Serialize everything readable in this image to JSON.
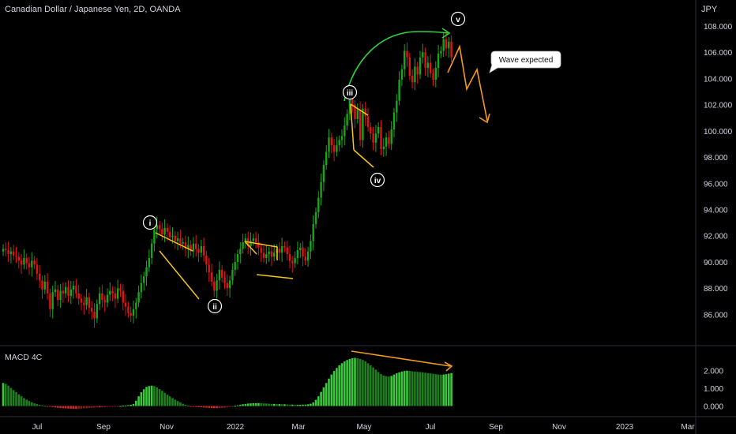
{
  "header": {
    "title": "Canadian Dollar / Japanese Yen, 2D, OANDA"
  },
  "chart_data": [
    {
      "type": "candlestick",
      "title": "Canadian Dollar / Japanese Yen, 2D, OANDA",
      "currency": "JPY",
      "x_ticks": [
        "Jul",
        "Sep",
        "Nov",
        "2022",
        "Mar",
        "May",
        "Jul",
        "Sep",
        "Nov",
        "2023",
        "Mar"
      ],
      "y_ticks": [
        "86.000",
        "88.000",
        "90.000",
        "92.000",
        "94.000",
        "96.000",
        "98.000",
        "100.000",
        "102.000",
        "104.000",
        "106.000",
        "108.000"
      ],
      "ylim": [
        84.1,
        109.5
      ],
      "closes": [
        91.0,
        90.9,
        90.6,
        90.8,
        90.5,
        90.4,
        90.1,
        89.8,
        90.3,
        89.9,
        89.6,
        90.1,
        89.8,
        89.1,
        88.6,
        87.9,
        88.5,
        87.6,
        86.4,
        87.7,
        87.9,
        87.1,
        87.8,
        87.6,
        88.1,
        87.4,
        87.9,
        88.2,
        87.6,
        87.2,
        86.9,
        86.7,
        87.3,
        86.5,
        86.2,
        85.7,
        86.8,
        87.6,
        87.1,
        86.9,
        87.5,
        87.8,
        87.6,
        87.2,
        88.0,
        87.8,
        86.9,
        86.6,
        86.1,
        85.9,
        86.4,
        86.9,
        87.7,
        88.4,
        88.9,
        89.6,
        90.3,
        91.4,
        92.5,
        92.8,
        92.5,
        92.1,
        92.6,
        92.3,
        91.9,
        92.0,
        91.6,
        91.8,
        91.4,
        91.5,
        91.0,
        91.3,
        90.8,
        91.4,
        91.0,
        90.7,
        91.2,
        90.5,
        89.8,
        89.2,
        88.5,
        87.8,
        88.6,
        89.4,
        88.8,
        88.4,
        88.0,
        88.6,
        89.4,
        90.0,
        90.6,
        91.0,
        91.5,
        91.8,
        91.2,
        91.6,
        91.8,
        91.5,
        91.1,
        90.7,
        90.3,
        90.6,
        90.8,
        90.4,
        90.7,
        91.0,
        90.7,
        91.2,
        91.1,
        90.6,
        90.1,
        89.9,
        90.3,
        90.9,
        91.1,
        90.4,
        90.1,
        90.8,
        91.6,
        92.9,
        93.8,
        94.9,
        96.1,
        97.4,
        98.4,
        99.5,
        98.9,
        98.4,
        98.9,
        99.3,
        99.6,
        100.4,
        101.3,
        102.6,
        102.0,
        100.9,
        101.6,
        99.3,
        101.7,
        101.1,
        100.3,
        99.8,
        99.1,
        99.8,
        100.3,
        98.6,
        98.8,
        99.5,
        99.0,
        100.1,
        101.4,
        102.3,
        103.9,
        104.7,
        106.1,
        105.6,
        104.2,
        103.7,
        104.9,
        104.3,
        105.6,
        106.0,
        104.8,
        105.2,
        104.4,
        103.9,
        104.8,
        105.9,
        106.1,
        107.0,
        106.3,
        106.8,
        105.6
      ],
      "macd": [
        1.3,
        1.25,
        1.15,
        1.02,
        0.9,
        0.78,
        0.66,
        0.55,
        0.45,
        0.36,
        0.28,
        0.21,
        0.15,
        0.11,
        0.07,
        0.04,
        0.01,
        -0.02,
        -0.04,
        -0.06,
        -0.08,
        -0.1,
        -0.11,
        -0.12,
        -0.13,
        -0.14,
        -0.15,
        -0.16,
        -0.16,
        -0.15,
        -0.14,
        -0.13,
        -0.12,
        -0.11,
        -0.1,
        -0.09,
        -0.08,
        -0.08,
        -0.07,
        -0.06,
        -0.05,
        -0.04,
        -0.03,
        -0.02,
        -0.01,
        0.0,
        0.02,
        0.03,
        0.05,
        0.07,
        0.12,
        0.3,
        0.55,
        0.78,
        0.95,
        1.08,
        1.13,
        1.15,
        1.12,
        1.05,
        0.96,
        0.86,
        0.75,
        0.64,
        0.54,
        0.45,
        0.36,
        0.28,
        0.2,
        0.13,
        0.07,
        0.02,
        -0.01,
        -0.03,
        -0.05,
        -0.06,
        -0.07,
        -0.08,
        -0.09,
        -0.1,
        -0.11,
        -0.12,
        -0.12,
        -0.11,
        -0.1,
        -0.09,
        -0.07,
        -0.05,
        -0.02,
        0.01,
        0.04,
        0.07,
        0.1,
        0.12,
        0.14,
        0.15,
        0.16,
        0.16,
        0.17,
        0.16,
        0.15,
        0.14,
        0.13,
        0.12,
        0.12,
        0.11,
        0.11,
        0.1,
        0.1,
        0.09,
        0.08,
        0.08,
        0.07,
        0.07,
        0.07,
        0.08,
        0.08,
        0.1,
        0.13,
        0.2,
        0.35,
        0.55,
        0.8,
        1.05,
        1.3,
        1.55,
        1.78,
        1.98,
        2.15,
        2.3,
        2.42,
        2.52,
        2.6,
        2.66,
        2.7,
        2.72,
        2.7,
        2.66,
        2.6,
        2.52,
        2.42,
        2.3,
        2.18,
        2.05,
        1.92,
        1.8,
        1.72,
        1.68,
        1.66,
        1.7,
        1.78,
        1.85,
        1.9,
        1.95,
        1.98,
        2.0,
        1.98,
        1.96,
        1.94,
        1.93,
        1.92,
        1.9,
        1.88,
        1.86,
        1.84,
        1.82,
        1.8,
        1.78,
        1.77,
        1.78,
        1.8,
        1.83,
        1.86
      ],
      "macd_yticks": [
        "0.000",
        "1.000",
        "2.000"
      ],
      "macd_ylim": [
        -0.6,
        3.1
      ],
      "macd_label": "MACD 4C",
      "wave_labels": [
        "i",
        "ii",
        "iii",
        "iv",
        "v"
      ],
      "annotation": "Wave expected",
      "colors": {
        "up": "#1aa51a",
        "down": "#e01414",
        "macd_up": "#1e8c1e",
        "macd_down": "#9b1c1c",
        "pattern": "#f5c518",
        "projection": "#f29a1a",
        "arrow_green": "#2fd13a"
      }
    }
  ]
}
